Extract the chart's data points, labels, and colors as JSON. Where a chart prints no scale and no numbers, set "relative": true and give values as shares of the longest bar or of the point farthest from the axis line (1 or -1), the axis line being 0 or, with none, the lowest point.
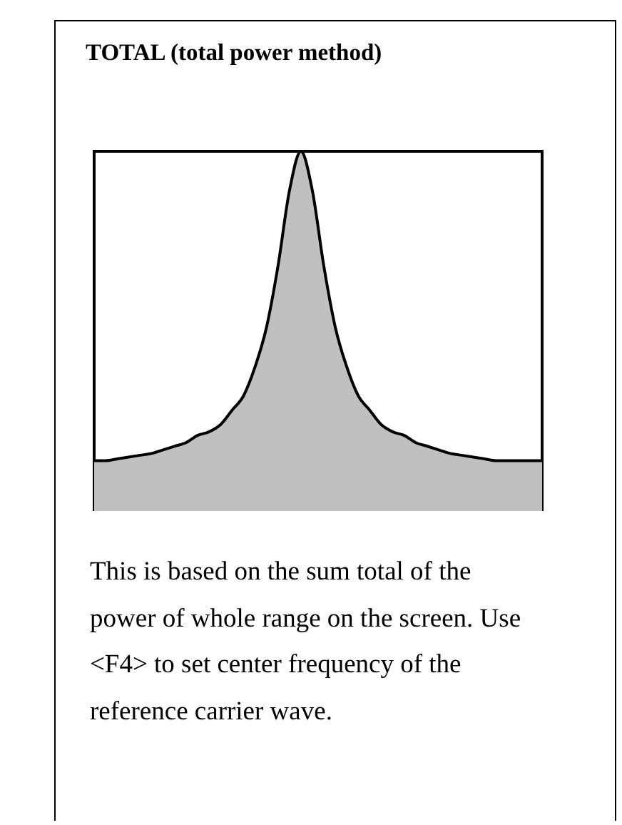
{
  "chart_data": {
    "type": "area",
    "title": "TOTAL (total power method)",
    "relative": true,
    "categories": [
      null,
      null,
      null,
      null,
      null,
      null,
      null,
      null,
      null,
      null,
      null,
      null,
      null,
      null,
      null,
      null,
      null,
      null,
      null,
      null,
      null,
      null,
      null,
      null,
      null,
      null,
      null,
      null,
      null,
      null,
      null,
      null,
      null,
      null,
      null,
      null,
      null,
      null,
      null,
      null
    ],
    "series": [
      {
        "color": "#c0c0c0",
        "values": [
          0.14,
          0.14,
          0.145,
          0.15,
          0.155,
          0.16,
          0.17,
          0.18,
          0.19,
          0.21,
          0.22,
          0.24,
          0.28,
          0.32,
          0.4,
          0.51,
          0.68,
          0.89,
          1,
          0.89,
          0.68,
          0.51,
          0.4,
          0.32,
          0.28,
          0.24,
          0.22,
          0.21,
          0.19,
          0.18,
          0.17,
          0.16,
          0.155,
          0.15,
          0.145,
          0.14,
          0.14,
          0.14,
          0.14,
          0.14
        ]
      }
    ],
    "annotations": [
      "This is based on the sum total of the power of whole range on the screen. Use <F4> to set center frequency of the reference carrier wave."
    ]
  }
}
